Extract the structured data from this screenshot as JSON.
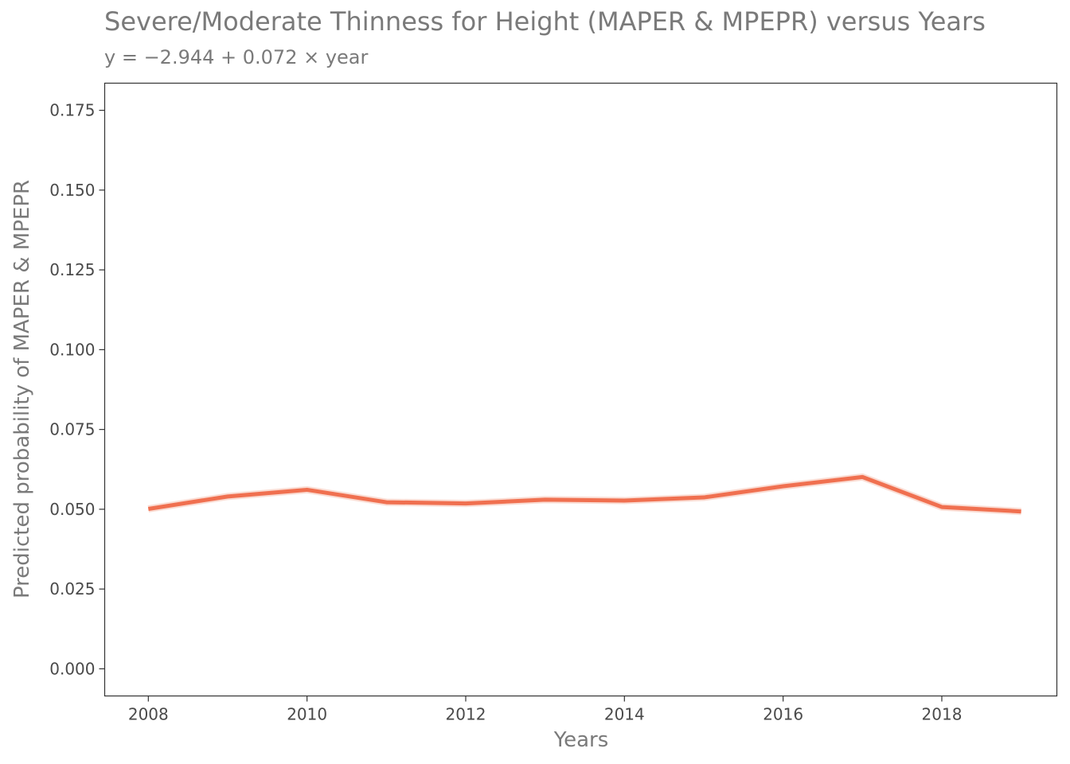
{
  "chart_data": {
    "type": "line",
    "title": "Severe/Moderate Thinness for Height (MAPER & MPEPR) versus Years",
    "subtitle": "y = −2.944 + 0.072 × year",
    "xlabel": "Years",
    "ylabel": "Predicted probability of MAPER & MPEPR",
    "xlim": [
      2007.45,
      2019.45
    ],
    "ylim": [
      -0.0085,
      0.1835
    ],
    "x_ticks": [
      2008,
      2010,
      2012,
      2014,
      2016,
      2018
    ],
    "y_ticks": [
      0.0,
      0.025,
      0.05,
      0.075,
      0.1,
      0.125,
      0.15,
      0.175
    ],
    "y_tick_labels": [
      "0.000",
      "0.025",
      "0.050",
      "0.075",
      "0.100",
      "0.125",
      "0.150",
      "0.175"
    ],
    "grid": false,
    "legend": "none",
    "series": [
      {
        "x": [
          2008,
          2009,
          2010,
          2011,
          2012,
          2013,
          2014,
          2015,
          2016,
          2017,
          2018,
          2019
        ],
        "values": [
          0.0501,
          0.054,
          0.0561,
          0.0522,
          0.0518,
          0.053,
          0.0527,
          0.0537,
          0.0572,
          0.0601,
          0.0507,
          0.0493
        ],
        "color": "#f07050"
      }
    ]
  }
}
